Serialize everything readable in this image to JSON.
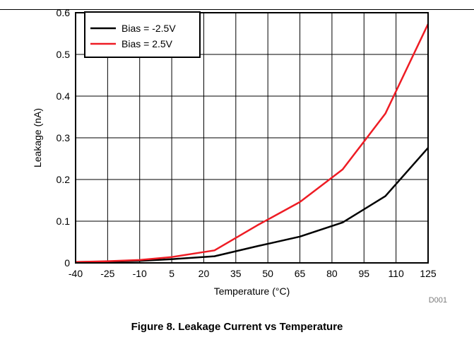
{
  "caption": "Figure 8. Leakage Current vs Temperature",
  "chart_data": {
    "type": "line",
    "title": "",
    "xlabel": "Temperature (°C)",
    "ylabel": "Leakage (nA)",
    "xlim": [
      -40,
      125
    ],
    "ylim": [
      0,
      0.6
    ],
    "x_ticks": [
      "-40",
      "-25",
      "-10",
      "5",
      "20",
      "35",
      "50",
      "65",
      "80",
      "95",
      "110",
      "125"
    ],
    "y_ticks": [
      "0",
      "0.1",
      "0.2",
      "0.3",
      "0.4",
      "0.5",
      "0.6"
    ],
    "grid": true,
    "legend_position": "top-left",
    "series": [
      {
        "name": "Bias = -2.5V",
        "color": "#000000",
        "x": [
          -40,
          -25,
          -10,
          5,
          25,
          45,
          65,
          85,
          105,
          125
        ],
        "y": [
          0.002,
          0.003,
          0.005,
          0.009,
          0.016,
          0.04,
          0.063,
          0.097,
          0.16,
          0.276
        ]
      },
      {
        "name": "Bias = 2.5V",
        "color": "#ee1c24",
        "x": [
          -40,
          -25,
          -10,
          5,
          25,
          45,
          65,
          85,
          105,
          125
        ],
        "y": [
          0.002,
          0.004,
          0.007,
          0.014,
          0.03,
          0.09,
          0.146,
          0.224,
          0.358,
          0.573
        ]
      }
    ],
    "annotation": "D001"
  }
}
